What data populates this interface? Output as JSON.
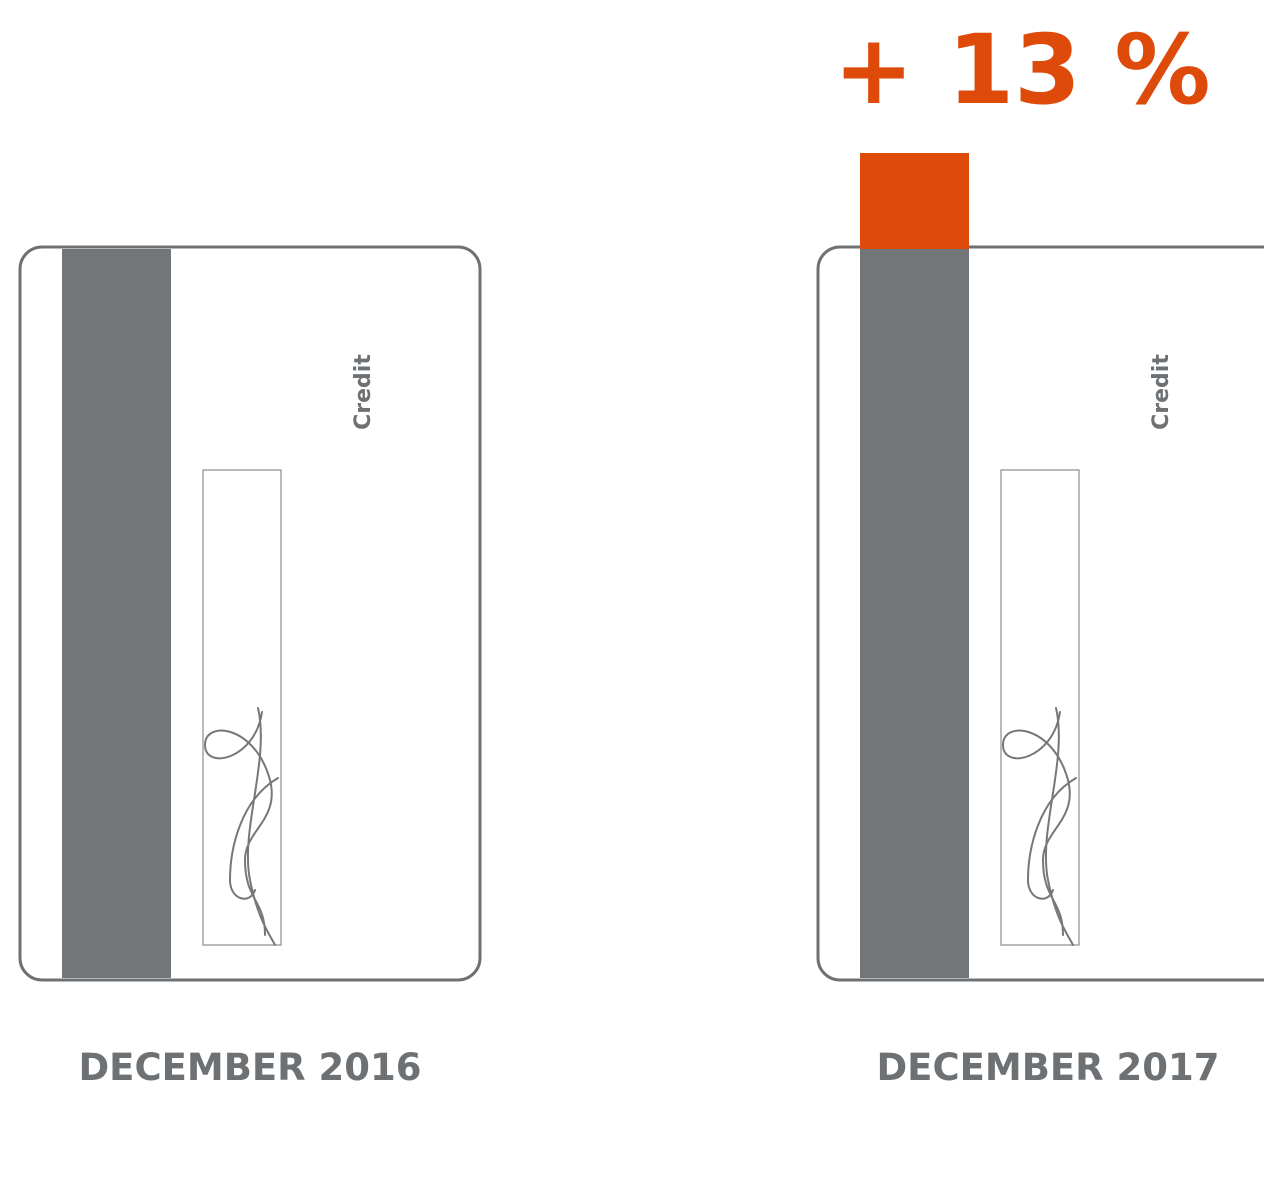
{
  "headline": "+ 13 %",
  "cards": [
    {
      "label": "Credit",
      "date": "DECEMBER 2016"
    },
    {
      "label": "Credit",
      "date": "DECEMBER 2017"
    }
  ]
}
